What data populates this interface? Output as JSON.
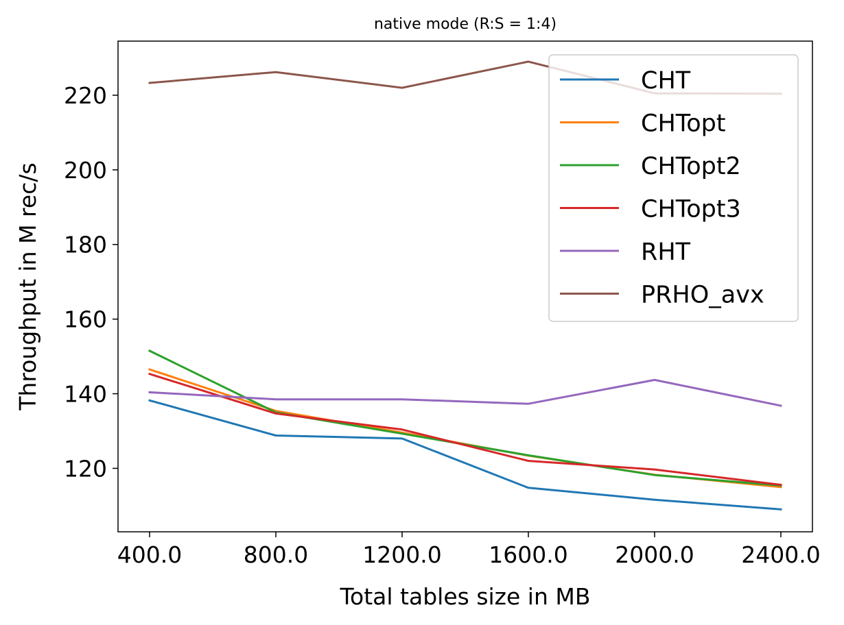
{
  "chart_data": {
    "type": "line",
    "title": "native mode (R:S = 1:4)",
    "xlabel": "Total tables size in MB",
    "ylabel": "Throughput in M rec/s",
    "x": [
      400.0,
      800.0,
      1200.0,
      1600.0,
      2000.0,
      2400.0
    ],
    "x_tick_labels": [
      "400.0",
      "800.0",
      "1200.0",
      "1600.0",
      "2000.0",
      "2400.0"
    ],
    "y_ticks": [
      120,
      140,
      160,
      180,
      200,
      220
    ],
    "y_tick_labels": [
      "120",
      "140",
      "160",
      "180",
      "200",
      "220"
    ],
    "xlim": [
      300,
      2500
    ],
    "ylim": [
      103,
      234.5
    ],
    "grid": false,
    "legend_position": "top-right",
    "series": [
      {
        "name": "CHT",
        "color": "#1f77b4",
        "values": [
          138.2,
          128.8,
          128.0,
          114.8,
          111.6,
          109.0
        ]
      },
      {
        "name": "CHTopt",
        "color": "#ff7f0e",
        "values": [
          146.5,
          135.4,
          129.6,
          123.4,
          118.3,
          115.0
        ]
      },
      {
        "name": "CHTopt2",
        "color": "#2ca02c",
        "values": [
          151.5,
          135.0,
          129.3,
          123.5,
          118.2,
          115.4
        ]
      },
      {
        "name": "CHTopt3",
        "color": "#d62728",
        "values": [
          145.3,
          134.7,
          130.4,
          122.0,
          119.7,
          115.6
        ]
      },
      {
        "name": "RHT",
        "color": "#9467bd",
        "values": [
          140.4,
          138.5,
          138.5,
          137.3,
          143.7,
          136.8
        ]
      },
      {
        "name": "PRHO_avx",
        "color": "#8c564b",
        "values": [
          223.3,
          226.2,
          222.0,
          229.0,
          220.5,
          220.4
        ]
      }
    ]
  }
}
